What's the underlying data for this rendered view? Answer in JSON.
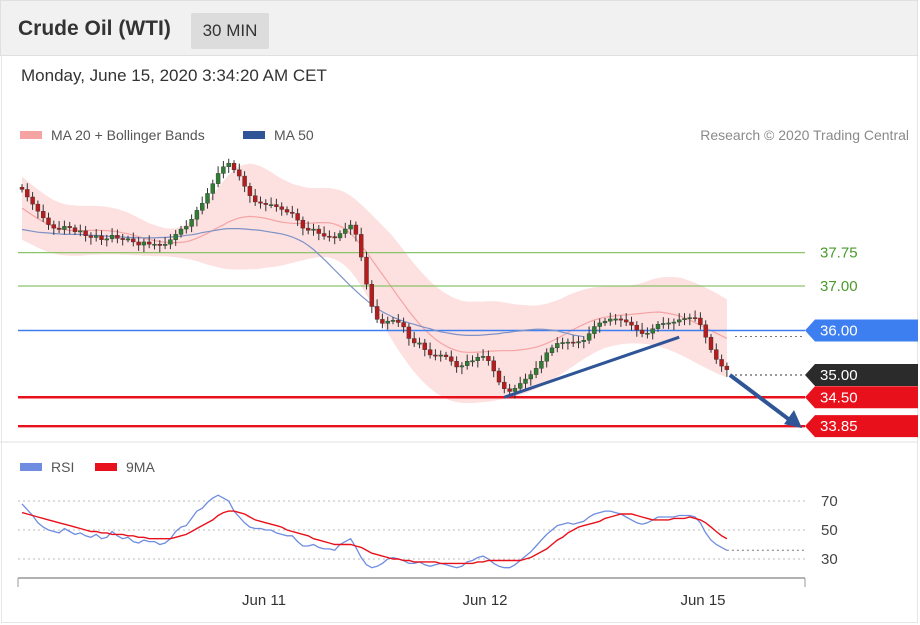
{
  "header": {
    "title": "Crude Oil (WTI)",
    "interval": "30 MIN"
  },
  "timestamp": "Monday, June 15, 2020 3:34:20 AM CET",
  "legend": {
    "ma20": "MA 20 + Bollinger Bands",
    "ma50": "MA 50",
    "rsi": "RSI",
    "rsi_ma": "9MA"
  },
  "credit": "Research © 2020 Trading Central",
  "colors": {
    "bollinger": "#f6a3a3",
    "ma50": "#2f5597",
    "level_green": "#8cc46a",
    "level_blue": "#3d7ff0",
    "level_red": "#e8101a",
    "price": "#2e2e2e",
    "rsi": "#6f8de0",
    "rsi_ma": "#e8101a"
  },
  "chart_data": [
    {
      "type": "candlestick",
      "x_tick_labels": [
        "Jun 11",
        "Jun 12",
        "Jun 15"
      ],
      "levels": [
        {
          "label": "37.75",
          "value": 37.75,
          "style": "green-line"
        },
        {
          "label": "37.00",
          "value": 37.0,
          "style": "green-line"
        },
        {
          "label": "36.00",
          "value": 36.0,
          "style": "blue-tag"
        },
        {
          "label": "35.00",
          "value": 35.0,
          "style": "dark-tag"
        },
        {
          "label": "34.50",
          "value": 34.5,
          "style": "red-tag"
        },
        {
          "label": "33.85",
          "value": 33.85,
          "style": "red-tag"
        }
      ],
      "close": [
        39.17,
        39.0,
        38.84,
        38.68,
        38.53,
        38.38,
        38.3,
        38.27,
        38.34,
        38.31,
        38.22,
        38.24,
        38.13,
        38.09,
        38.13,
        38.04,
        38.06,
        38.14,
        38.07,
        38.05,
        38.06,
        37.99,
        37.92,
        37.99,
        37.94,
        37.94,
        37.91,
        37.94,
        38.04,
        38.16,
        38.28,
        38.34,
        38.5,
        38.7,
        38.86,
        39.08,
        39.3,
        39.53,
        39.68,
        39.76,
        39.61,
        39.47,
        39.24,
        39.03,
        38.89,
        38.86,
        38.83,
        38.83,
        38.78,
        38.72,
        38.66,
        38.63,
        38.48,
        38.3,
        38.25,
        38.28,
        38.18,
        38.12,
        38.11,
        38.08,
        38.18,
        38.28,
        38.37,
        38.16,
        37.65,
        37.04,
        36.54,
        36.25,
        36.16,
        36.21,
        36.23,
        36.18,
        36.08,
        35.82,
        35.72,
        35.72,
        35.57,
        35.45,
        35.44,
        35.45,
        35.41,
        35.31,
        35.18,
        35.21,
        35.31,
        35.32,
        35.4,
        35.42,
        35.32,
        35.09,
        34.84,
        34.69,
        34.63,
        34.7,
        34.81,
        34.91,
        35.01,
        35.15,
        35.31,
        35.5,
        35.61,
        35.71,
        35.73,
        35.74,
        35.72,
        35.75,
        35.78,
        35.93,
        36.09,
        36.17,
        36.21,
        36.26,
        36.26,
        36.24,
        36.19,
        36.12,
        36.01,
        35.93,
        35.94,
        36.04,
        36.14,
        36.16,
        36.17,
        36.19,
        36.24,
        36.27,
        36.29,
        36.28,
        36.13,
        35.85,
        35.57,
        35.35,
        35.2,
        35.12
      ],
      "bollinger_upper": [
        39.46,
        39.36,
        39.26,
        39.17,
        39.08,
        39.0,
        38.93,
        38.88,
        38.84,
        38.82,
        38.81,
        38.8,
        38.8,
        38.8,
        38.8,
        38.79,
        38.78,
        38.76,
        38.73,
        38.69,
        38.65,
        38.59,
        38.53,
        38.47,
        38.41,
        38.37,
        38.33,
        38.3,
        38.29,
        38.3,
        38.33,
        38.38,
        38.47,
        38.59,
        38.73,
        38.89,
        39.05,
        39.21,
        39.36,
        39.5,
        39.61,
        39.69,
        39.73,
        39.75,
        39.73,
        39.69,
        39.63,
        39.56,
        39.48,
        39.41,
        39.35,
        39.3,
        39.26,
        39.23,
        39.21,
        39.2,
        39.2,
        39.2,
        39.2,
        39.18,
        39.15,
        39.1,
        39.03,
        38.94,
        38.83,
        38.72,
        38.6,
        38.48,
        38.36,
        38.24,
        38.11,
        37.96,
        37.81,
        37.65,
        37.5,
        37.36,
        37.23,
        37.11,
        37.0,
        36.91,
        36.83,
        36.76,
        36.71,
        36.67,
        36.65,
        36.65,
        36.65,
        36.65,
        36.66,
        36.66,
        36.65,
        36.63,
        36.61,
        36.59,
        36.58,
        36.57,
        36.56,
        36.56,
        36.58,
        36.6,
        36.64,
        36.68,
        36.73,
        36.79,
        36.84,
        36.88,
        36.92,
        36.95,
        36.97,
        36.98,
        36.99,
        36.99,
        36.99,
        37.0,
        37.0,
        37.02,
        37.04,
        37.07,
        37.11,
        37.15,
        37.18,
        37.2,
        37.2,
        37.2,
        37.19,
        37.16,
        37.12,
        37.07,
        37.02,
        36.96,
        36.9,
        36.84,
        36.77,
        36.7
      ],
      "bollinger_lower": [
        38.04,
        37.98,
        37.92,
        37.86,
        37.81,
        37.76,
        37.73,
        37.7,
        37.69,
        37.68,
        37.68,
        37.68,
        37.69,
        37.7,
        37.7,
        37.71,
        37.71,
        37.71,
        37.71,
        37.7,
        37.7,
        37.69,
        37.69,
        37.68,
        37.68,
        37.67,
        37.67,
        37.67,
        37.66,
        37.65,
        37.63,
        37.61,
        37.59,
        37.56,
        37.52,
        37.48,
        37.45,
        37.42,
        37.39,
        37.38,
        37.37,
        37.37,
        37.37,
        37.38,
        37.38,
        37.39,
        37.41,
        37.42,
        37.44,
        37.46,
        37.49,
        37.52,
        37.55,
        37.58,
        37.61,
        37.63,
        37.65,
        37.65,
        37.64,
        37.6,
        37.54,
        37.45,
        37.33,
        37.18,
        37.0,
        36.8,
        36.59,
        36.37,
        36.16,
        35.95,
        35.75,
        35.56,
        35.39,
        35.22,
        35.07,
        34.93,
        34.81,
        34.7,
        34.61,
        34.53,
        34.47,
        34.42,
        34.39,
        34.37,
        34.37,
        34.37,
        34.38,
        34.39,
        34.4,
        34.42,
        34.44,
        34.46,
        34.48,
        34.51,
        34.55,
        34.59,
        34.64,
        34.69,
        34.75,
        34.82,
        34.89,
        34.96,
        35.04,
        35.12,
        35.2,
        35.28,
        35.36,
        35.43,
        35.5,
        35.56,
        35.61,
        35.64,
        35.67,
        35.69,
        35.7,
        35.71,
        35.71,
        35.7,
        35.69,
        35.67,
        35.65,
        35.61,
        35.57,
        35.52,
        35.47,
        35.41,
        35.35,
        35.28,
        35.22,
        35.16,
        35.1,
        35.04,
        34.99,
        34.95
      ],
      "ma50": [
        38.27,
        38.25,
        38.23,
        38.21,
        38.2,
        38.19,
        38.18,
        38.17,
        38.16,
        38.16,
        38.16,
        38.16,
        38.15,
        38.14,
        38.14,
        38.13,
        38.12,
        38.11,
        38.11,
        38.1,
        38.09,
        38.09,
        38.08,
        38.08,
        38.08,
        38.08,
        38.09,
        38.09,
        38.1,
        38.11,
        38.12,
        38.14,
        38.15,
        38.17,
        38.2,
        38.22,
        38.24,
        38.26,
        38.28,
        38.29,
        38.29,
        38.29,
        38.28,
        38.27,
        38.26,
        38.25,
        38.23,
        38.21,
        38.19,
        38.17,
        38.14,
        38.1,
        38.05,
        37.99,
        37.91,
        37.82,
        37.71,
        37.6,
        37.48,
        37.36,
        37.24,
        37.12,
        37.0,
        36.89,
        36.78,
        36.68,
        36.58,
        36.5,
        36.42,
        36.36,
        36.3,
        36.25,
        36.21,
        36.17,
        36.14,
        36.1,
        36.07,
        36.04,
        36.0,
        35.97,
        35.95,
        35.93,
        35.91,
        35.9,
        35.89,
        35.89,
        35.89,
        35.9,
        35.91,
        35.92,
        35.93,
        35.95,
        35.96,
        35.98,
        35.99,
        36.01,
        36.02,
        36.03,
        36.03,
        36.02,
        36.01,
        35.99,
        35.96,
        35.93,
        35.9,
        35.88,
        35.86
      ],
      "trendline_from_value": 34.5,
      "trendline_to_value": 35.85,
      "projection_from_value": 35.0,
      "projection_to_value": 33.85
    },
    {
      "type": "line",
      "series": [
        {
          "name": "RSI",
          "values": [
            68,
            64,
            60,
            55,
            52,
            50,
            49,
            48,
            51,
            49,
            47,
            48,
            46,
            45,
            47,
            44,
            45,
            49,
            46,
            44,
            45,
            42,
            41,
            43,
            42,
            42,
            40,
            41,
            44,
            49,
            52,
            53,
            58,
            63,
            65,
            69,
            72,
            74,
            72,
            70,
            63,
            59,
            55,
            52,
            51,
            51,
            50,
            50,
            48,
            47,
            46,
            46,
            42,
            39,
            39,
            40,
            38,
            37,
            37,
            36,
            40,
            42,
            44,
            38,
            31,
            26,
            24,
            25,
            27,
            30,
            31,
            30,
            29,
            27,
            27,
            28,
            26,
            25,
            26,
            27,
            26,
            25,
            24,
            25,
            28,
            29,
            31,
            32,
            30,
            27,
            25,
            24,
            24,
            26,
            29,
            32,
            35,
            39,
            43,
            47,
            50,
            53,
            54,
            55,
            54,
            55,
            56,
            59,
            61,
            62,
            63,
            63,
            62,
            61,
            59,
            57,
            55,
            54,
            55,
            57,
            59,
            59,
            59,
            59,
            60,
            60,
            60,
            59,
            55,
            48,
            43,
            40,
            38,
            36
          ]
        },
        {
          "name": "9MA",
          "values": [
            62,
            61,
            60,
            59,
            58,
            57,
            56,
            55,
            54,
            53,
            52,
            51,
            50,
            49,
            49,
            48,
            48,
            47,
            47,
            47,
            46,
            46,
            45,
            45,
            44,
            44,
            44,
            44,
            44,
            45,
            46,
            47,
            49,
            51,
            53,
            55,
            57,
            60,
            62,
            63,
            63,
            62,
            61,
            59,
            57,
            56,
            55,
            54,
            53,
            52,
            50,
            49,
            48,
            47,
            46,
            44,
            43,
            42,
            41,
            40,
            40,
            40,
            40,
            39,
            38,
            36,
            34,
            33,
            32,
            31,
            30,
            30,
            29,
            29,
            28,
            28,
            28,
            28,
            28,
            27,
            27,
            27,
            27,
            27,
            27,
            27,
            28,
            28,
            29,
            29,
            29,
            29,
            29,
            29,
            29,
            30,
            31,
            33,
            35,
            37,
            40,
            43,
            45,
            48,
            50,
            52,
            53,
            54,
            55,
            56,
            58,
            59,
            60,
            61,
            61,
            61,
            60,
            59,
            58,
            57,
            57,
            57,
            57,
            58,
            58,
            58,
            59,
            58,
            57,
            55,
            52,
            49,
            46,
            44
          ]
        }
      ],
      "y_tick_labels": [
        "70",
        "50",
        "30"
      ],
      "ylim": [
        20,
        80
      ]
    }
  ]
}
